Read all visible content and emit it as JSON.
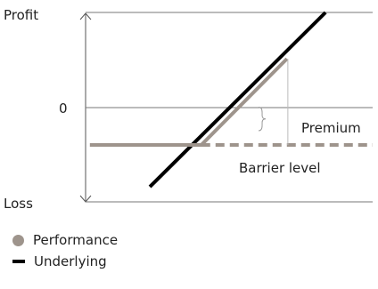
{
  "chart_data": {
    "type": "line",
    "axis_labels": {
      "top": "Profit",
      "zero": "0",
      "bottom": "Loss"
    },
    "annotations": {
      "premium": "Premium",
      "barrier": "Barrier level"
    },
    "series": [
      {
        "name": "Performance",
        "color": "#9e948c",
        "points": [
          [
            0,
            -1.33
          ],
          [
            1.3,
            -1.33
          ],
          [
            2.3,
            1.7
          ]
        ]
      },
      {
        "name": "Underlying",
        "color": "#000000",
        "points": [
          [
            0.7,
            -2.8
          ],
          [
            2.75,
            3.33
          ]
        ]
      }
    ],
    "barrier": {
      "value": -1.33,
      "x_start": 1.3,
      "x_end": 3.3,
      "color": "#9e948c"
    },
    "premium_gap": {
      "from": 0,
      "to": -0.83,
      "at_x": 2.0
    },
    "xlim": [
      -0.05,
      3.3
    ],
    "ylim": [
      -3.33,
      3.33
    ],
    "legend": [
      {
        "label": "Performance",
        "color": "#9e948c",
        "marker": "circle"
      },
      {
        "label": "Underlying",
        "color": "#000000",
        "marker": "line"
      }
    ]
  }
}
